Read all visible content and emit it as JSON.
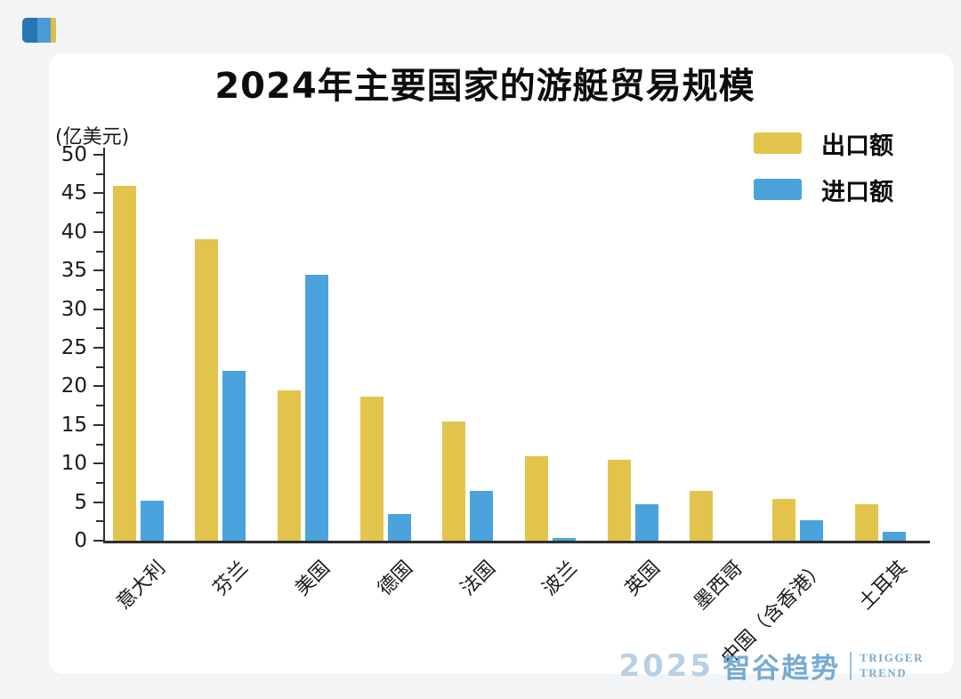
{
  "page": {
    "title": "2024年主要国家的游艇贸易规模",
    "y_unit_label": "(亿美元)"
  },
  "legend": [
    {
      "label": "出口额",
      "color": "#e2c44d"
    },
    {
      "label": "进口额",
      "color": "#4aa3dc"
    }
  ],
  "chart_data": {
    "type": "bar",
    "title": "2024年主要国家的游艇贸易规模",
    "ylabel": "(亿美元)",
    "categories": [
      "意大利",
      "芬兰",
      "美国",
      "德国",
      "法国",
      "波兰",
      "英国",
      "墨西哥",
      "中国（含香港）",
      "土耳其"
    ],
    "series": [
      {
        "name": "出口额",
        "color": "#e2c44d",
        "values": [
          46,
          39,
          19.5,
          18.7,
          15.4,
          10.9,
          10.5,
          6.5,
          5.4,
          4.7
        ]
      },
      {
        "name": "进口额",
        "color": "#4aa3dc",
        "values": [
          5.2,
          22,
          34.5,
          3.5,
          6.5,
          0.4,
          4.7,
          0,
          2.6,
          1.2
        ]
      }
    ],
    "ylim": [
      0,
      50
    ],
    "ytick_step": 5,
    "ytick_minor_step": 2.5,
    "ytick_labels": [
      "0",
      "5",
      "10",
      "15",
      "20",
      "25",
      "30",
      "35",
      "40",
      "45",
      "50"
    ],
    "grid": false,
    "legend_position": "top-right",
    "xtick_rotation_deg": 45
  },
  "footer": {
    "year": "2025",
    "brand": "智谷趋势",
    "tagline_line1": "TRIGGER",
    "tagline_line2": "TREND"
  },
  "icons": {
    "corner_logo": "brand-bookmark-icon",
    "colors": {
      "dark_blue": "#2477b3",
      "mid_blue": "#4a9ad6",
      "yellow": "#ddbe4b"
    }
  }
}
